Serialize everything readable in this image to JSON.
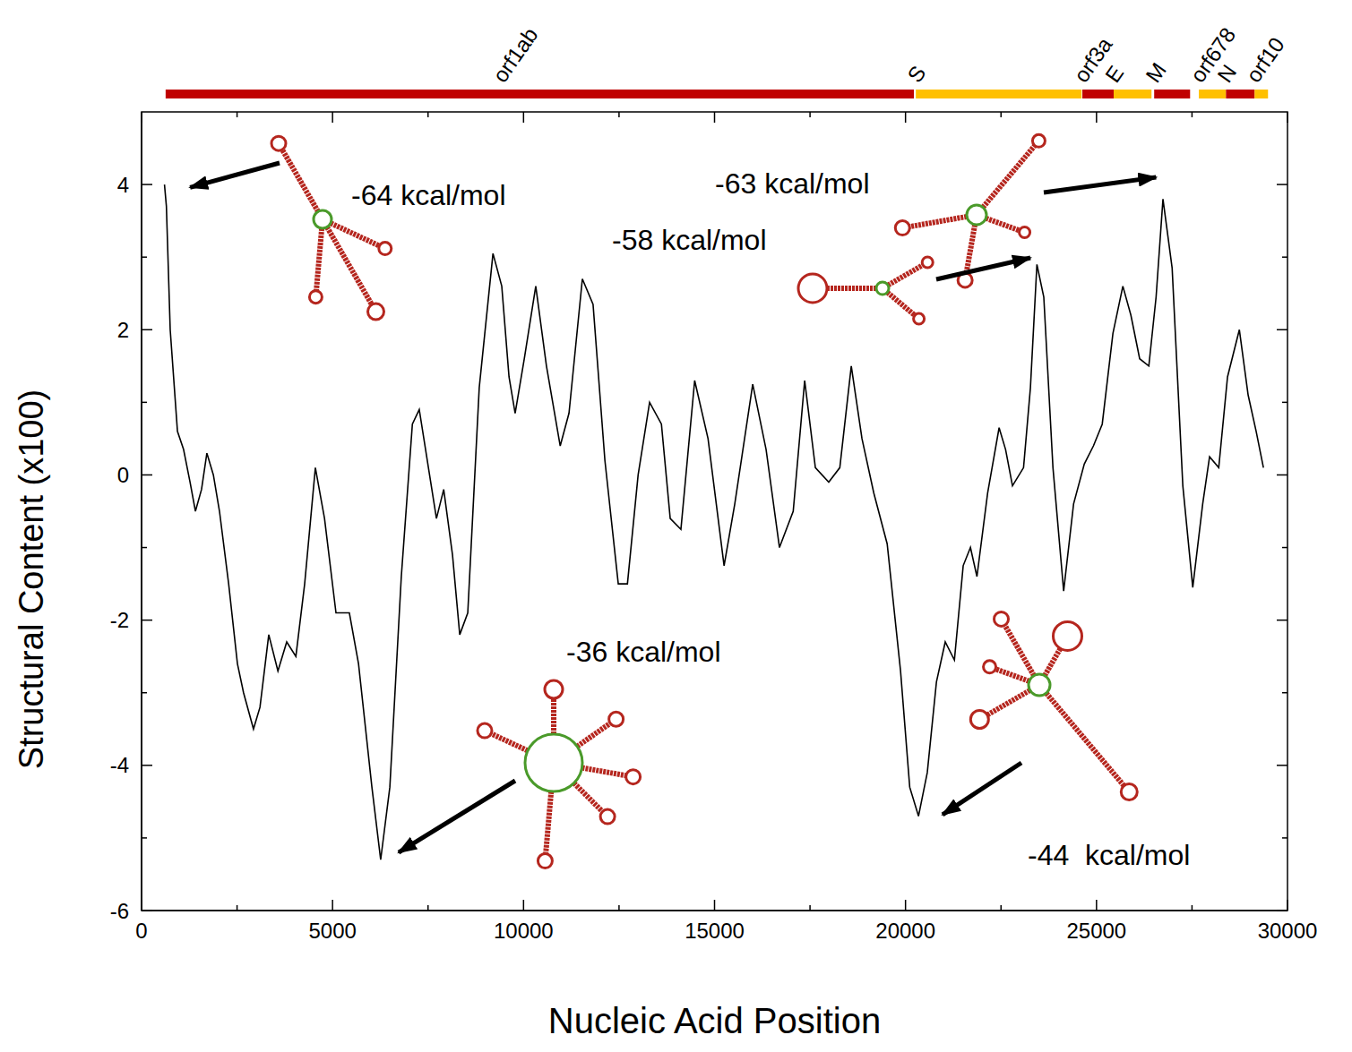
{
  "chart_data": {
    "type": "line",
    "xlabel": "Nucleic Acid Position",
    "ylabel": "Structural Content (x100)",
    "color": "#000000",
    "xlim": [
      0,
      30000
    ],
    "ylim": [
      -6,
      5
    ],
    "xticks": [
      0,
      5000,
      10000,
      15000,
      20000,
      25000,
      30000
    ],
    "yticks": [
      -6,
      -4,
      -2,
      0,
      2,
      4
    ],
    "x": [
      600,
      650,
      750,
      940,
      1100,
      1270,
      1410,
      1570,
      1710,
      1880,
      2040,
      2280,
      2510,
      2670,
      2930,
      3100,
      3330,
      3570,
      3800,
      4040,
      4270,
      4550,
      4790,
      5090,
      5440,
      5680,
      6030,
      6260,
      6500,
      6800,
      7090,
      7270,
      7510,
      7720,
      7910,
      8140,
      8330,
      8540,
      8840,
      9200,
      9430,
      9620,
      9780,
      10020,
      10320,
      10600,
      10960,
      11190,
      11540,
      11820,
      12130,
      12480,
      12720,
      13000,
      13300,
      13610,
      13840,
      14120,
      14480,
      14830,
      15250,
      15530,
      16000,
      16350,
      16700,
      17060,
      17360,
      17640,
      17990,
      18280,
      18580,
      18860,
      19170,
      19520,
      19870,
      20110,
      20340,
      20570,
      20810,
      21040,
      21280,
      21510,
      21700,
      21870,
      22150,
      22450,
      22620,
      22800,
      23090,
      23270,
      23440,
      23620,
      23860,
      24140,
      24400,
      24680,
      24920,
      25150,
      25430,
      25690,
      25900,
      26130,
      26370,
      26560,
      26740,
      26980,
      27260,
      27520,
      27780,
      27960,
      28200,
      28430,
      28740,
      28970,
      29180,
      29370
    ],
    "values": [
      4.0,
      3.7,
      2.0,
      0.6,
      0.35,
      -0.1,
      -0.5,
      -0.2,
      0.3,
      0.0,
      -0.5,
      -1.5,
      -2.6,
      -3.0,
      -3.5,
      -3.2,
      -2.2,
      -2.7,
      -2.3,
      -2.5,
      -1.5,
      0.1,
      -0.6,
      -1.9,
      -1.9,
      -2.6,
      -4.3,
      -5.3,
      -4.3,
      -1.4,
      0.7,
      0.9,
      0.1,
      -0.6,
      -0.2,
      -1.1,
      -2.2,
      -1.9,
      1.2,
      3.05,
      2.6,
      1.35,
      0.85,
      1.6,
      2.6,
      1.5,
      0.4,
      0.85,
      2.7,
      2.35,
      0.2,
      -1.5,
      -1.5,
      0.0,
      1.0,
      0.7,
      -0.6,
      -0.75,
      1.3,
      0.5,
      -1.25,
      -0.4,
      1.25,
      0.35,
      -1.0,
      -0.5,
      1.3,
      0.1,
      -0.1,
      0.1,
      1.5,
      0.5,
      -0.25,
      -0.95,
      -2.7,
      -4.3,
      -4.7,
      -4.1,
      -2.85,
      -2.3,
      -2.55,
      -1.25,
      -1.0,
      -1.4,
      -0.25,
      0.65,
      0.35,
      -0.15,
      0.1,
      1.2,
      2.9,
      2.45,
      0.1,
      -1.6,
      -0.4,
      0.15,
      0.4,
      0.7,
      1.95,
      2.6,
      2.2,
      1.6,
      1.5,
      2.45,
      3.8,
      2.85,
      -0.15,
      -1.55,
      -0.4,
      0.25,
      0.1,
      1.35,
      2.0,
      1.1,
      0.6,
      0.1
    ],
    "genes": [
      {
        "name": "orf1ab",
        "start": 630,
        "end": 20220,
        "color": "#c00000"
      },
      {
        "name": "S",
        "start": 20270,
        "end": 24610,
        "color": "#ffc000"
      },
      {
        "name": "orf3a",
        "start": 24630,
        "end": 25450,
        "color": "#c00000"
      },
      {
        "name": "E",
        "start": 25450,
        "end": 26440,
        "color": "#ffc000"
      },
      {
        "name": "M",
        "start": 26510,
        "end": 27450,
        "color": "#c00000"
      },
      {
        "name": "orf678",
        "start": 27680,
        "end": 28390,
        "color": "#ffc000"
      },
      {
        "name": "N",
        "start": 28390,
        "end": 29140,
        "color": "#c00000"
      },
      {
        "name": "orf10",
        "start": 29140,
        "end": 29490,
        "color": "#ffc000"
      }
    ],
    "annotations": [
      {
        "text": "-64 kcal/mol",
        "x": 1270,
        "y": 3.96
      },
      {
        "text": "-63 kcal/mol",
        "x": 26560,
        "y": 4.1
      },
      {
        "text": "-58 kcal/mol",
        "x": 23270,
        "y": 2.99
      },
      {
        "text": "-36 kcal/mol",
        "x": 6730,
        "y": -5.2
      },
      {
        "text": "-44  kcal/mol",
        "x": 20970,
        "y": -4.68
      }
    ]
  }
}
